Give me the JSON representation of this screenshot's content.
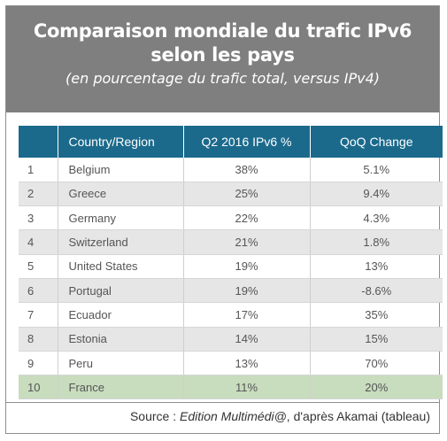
{
  "header": {
    "title_line1": "Comparaison mondiale du trafic IPv6",
    "title_line2": "selon les pays",
    "subtitle": "(en pourcentage du trafic total, versus IPv4)"
  },
  "table": {
    "columns": [
      "",
      "Country/Region",
      "Q2 2016 IPv6 %",
      "QoQ Change"
    ],
    "rows": [
      {
        "rank": "1",
        "country": "Belgium",
        "ipv6": "38%",
        "change": "5.1%"
      },
      {
        "rank": "2",
        "country": "Greece",
        "ipv6": "25%",
        "change": "9.4%"
      },
      {
        "rank": "3",
        "country": "Germany",
        "ipv6": "22%",
        "change": "4.3%"
      },
      {
        "rank": "4",
        "country": "Switzerland",
        "ipv6": "21%",
        "change": "1.8%"
      },
      {
        "rank": "5",
        "country": "United States",
        "ipv6": "19%",
        "change": "13%"
      },
      {
        "rank": "6",
        "country": "Portugal",
        "ipv6": "19%",
        "change": "-8.6%"
      },
      {
        "rank": "7",
        "country": "Ecuador",
        "ipv6": "17%",
        "change": "35%"
      },
      {
        "rank": "8",
        "country": "Estonia",
        "ipv6": "14%",
        "change": "15%"
      },
      {
        "rank": "9",
        "country": "Peru",
        "ipv6": "13%",
        "change": "70%"
      },
      {
        "rank": "10",
        "country": "France",
        "ipv6": "11%",
        "change": "20%"
      }
    ]
  },
  "footer": {
    "source_prefix": "Source : ",
    "source_publication": "Edition Multimédi@",
    "source_suffix": ", d'après Akamai (tableau)"
  },
  "colors": {
    "header_bg": "#7f7f7f",
    "table_header_bg": "#1b6a8c",
    "alt_row_bg": "#e6e6e6",
    "highlight_row_bg": "#c8dcbe"
  }
}
